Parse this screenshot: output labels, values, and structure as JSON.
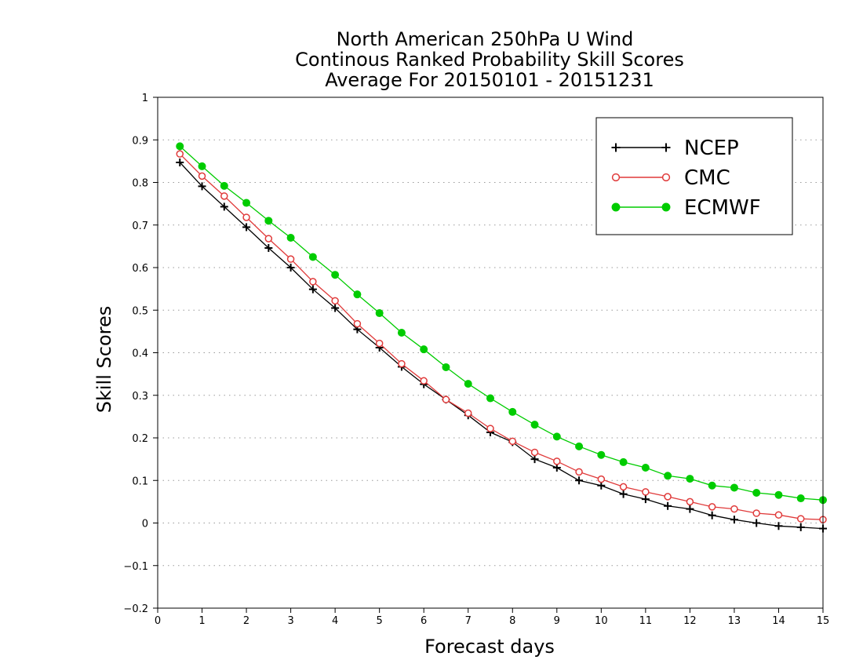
{
  "chart_data": {
    "type": "line",
    "title_lines": [
      "North American 250hPa U Wind",
      "Continous Ranked Probability Skill Scores",
      "Average For 20150101 - 20151231"
    ],
    "xlabel": "Forecast days",
    "ylabel": "Skill Scores",
    "xlim": [
      0,
      15
    ],
    "ylim": [
      -0.2,
      1
    ],
    "x_ticks": [
      "0",
      "1",
      "2",
      "3",
      "4",
      "5",
      "6",
      "7",
      "8",
      "9",
      "10",
      "11",
      "12",
      "13",
      "14",
      "15"
    ],
    "y_ticks": [
      "−0.2",
      "−0.1",
      "0",
      "0.1",
      "0.2",
      "0.3",
      "0.4",
      "0.5",
      "0.6",
      "0.7",
      "0.8",
      "0.9",
      "1"
    ],
    "grid": "horizontal dotted",
    "legend_position": "top-right",
    "x": [
      0.5,
      1,
      1.5,
      2,
      2.5,
      3,
      3.5,
      4,
      4.5,
      5,
      5.5,
      6,
      6.5,
      7,
      7.5,
      8,
      8.5,
      9,
      9.5,
      10,
      10.5,
      11,
      11.5,
      12,
      12.5,
      13,
      13.5,
      14,
      14.5,
      15
    ],
    "series": [
      {
        "name": "NCEP",
        "color": "#000000",
        "marker": "plus",
        "values": [
          0.847,
          0.791,
          0.743,
          0.695,
          0.646,
          0.6,
          0.549,
          0.505,
          0.455,
          0.412,
          0.367,
          0.326,
          0.29,
          0.253,
          0.213,
          0.19,
          0.15,
          0.13,
          0.1,
          0.088,
          0.068,
          0.056,
          0.04,
          0.033,
          0.018,
          0.008,
          0.0,
          -0.007,
          -0.01,
          -0.013
        ]
      },
      {
        "name": "CMC",
        "color": "#e03a3a",
        "marker": "open-circle",
        "values": [
          0.867,
          0.815,
          0.768,
          0.718,
          0.668,
          0.62,
          0.567,
          0.522,
          0.468,
          0.422,
          0.374,
          0.334,
          0.29,
          0.258,
          0.222,
          0.192,
          0.166,
          0.145,
          0.12,
          0.103,
          0.085,
          0.073,
          0.062,
          0.05,
          0.038,
          0.033,
          0.023,
          0.019,
          0.01,
          0.008
        ]
      },
      {
        "name": "ECMWF",
        "color": "#00cc00",
        "marker": "filled-circle",
        "values": [
          0.885,
          0.838,
          0.792,
          0.752,
          0.71,
          0.67,
          0.625,
          0.583,
          0.537,
          0.493,
          0.447,
          0.408,
          0.366,
          0.327,
          0.293,
          0.261,
          0.231,
          0.203,
          0.18,
          0.16,
          0.143,
          0.13,
          0.111,
          0.104,
          0.088,
          0.083,
          0.071,
          0.066,
          0.058,
          0.054
        ]
      }
    ]
  }
}
